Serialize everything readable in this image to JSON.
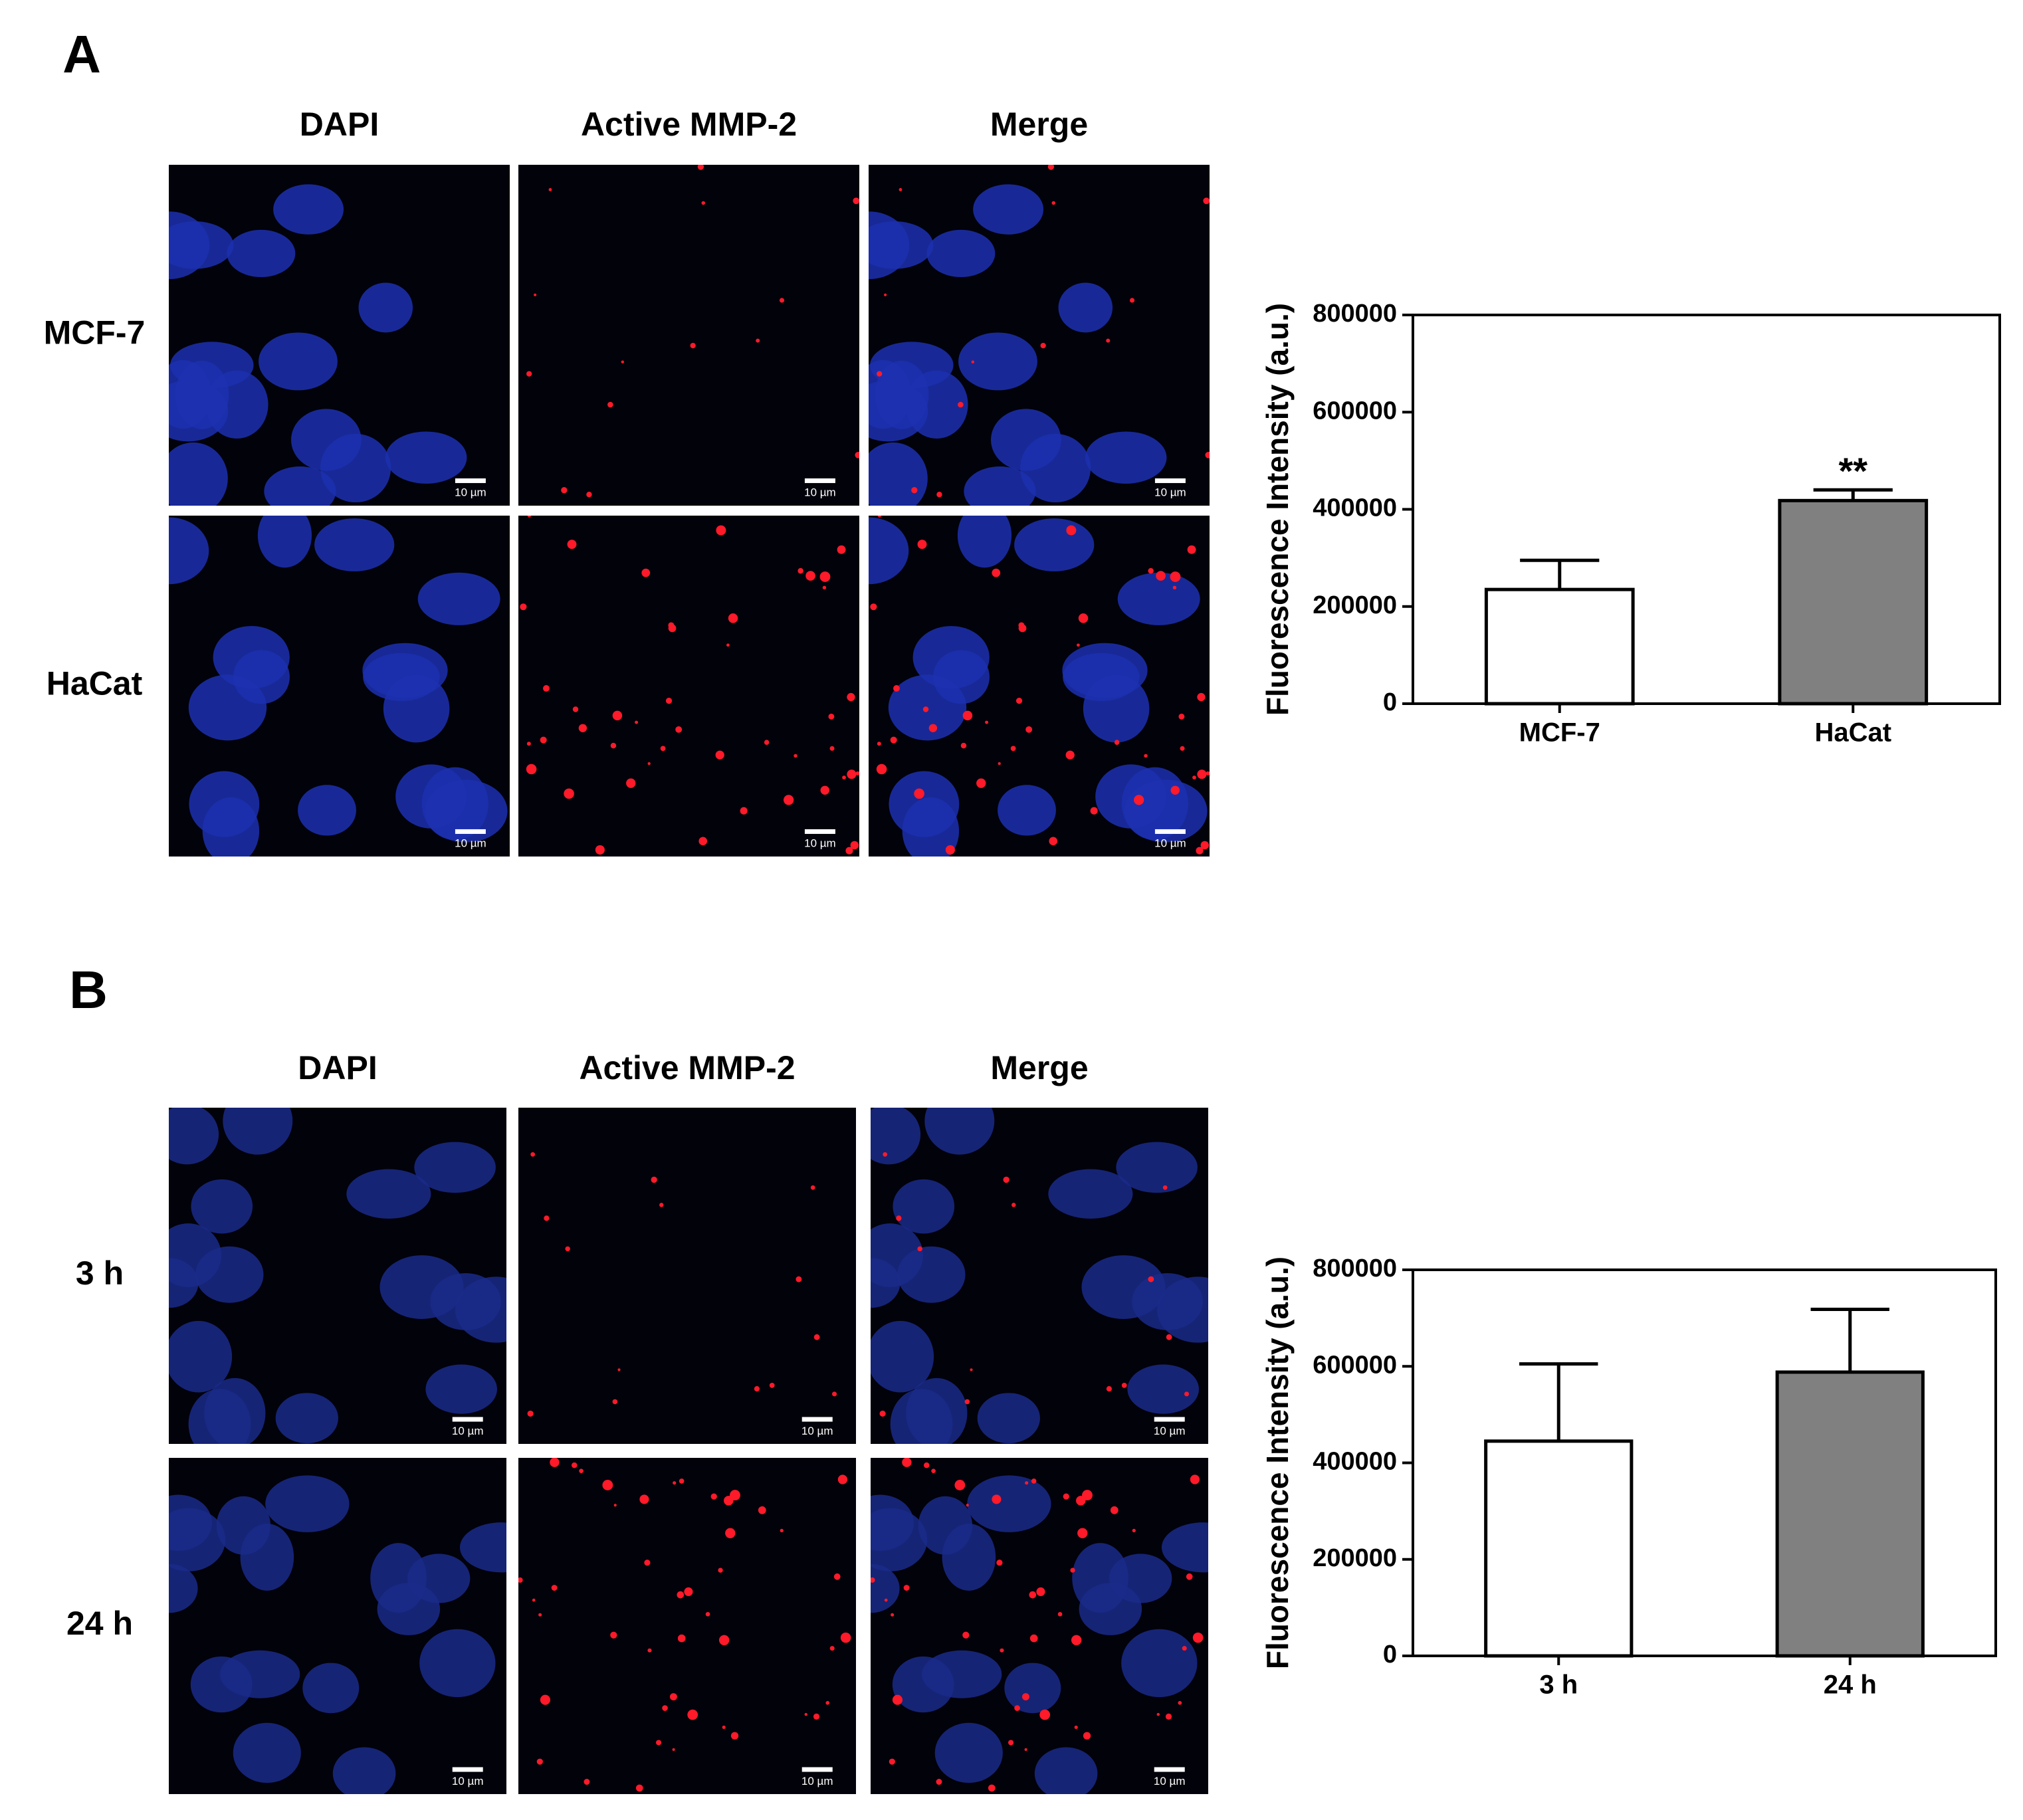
{
  "panels": [
    {
      "label": "A",
      "columns": [
        "DAPI",
        "Active MMP-2",
        "Merge"
      ],
      "rows": [
        "MCF-7",
        "HaCat"
      ],
      "scale_bar": "10 µm"
    },
    {
      "label": "B",
      "columns": [
        "DAPI",
        "Active MMP-2",
        "Merge"
      ],
      "rows": [
        "3 h",
        "24 h"
      ],
      "scale_bar": "10 µm"
    }
  ],
  "chart_data": [
    {
      "type": "bar",
      "ylabel": "Fluorescence Intensity (a.u.)",
      "categories": [
        "MCF-7",
        "HaCat"
      ],
      "values": [
        235000,
        418000
      ],
      "errors": [
        60000,
        22000
      ],
      "colors": [
        "#ffffff",
        "#808080"
      ],
      "annotation": {
        "text": "**",
        "category": "HaCat"
      },
      "ylim": [
        0,
        800000
      ],
      "yticks": [
        0,
        200000,
        400000,
        600000,
        800000
      ]
    },
    {
      "type": "bar",
      "ylabel": "Fluorescence Intensity (a.u.)",
      "categories": [
        "3 h",
        "24 h"
      ],
      "values": [
        445000,
        588000
      ],
      "errors": [
        160000,
        130000
      ],
      "colors": [
        "#ffffff",
        "#808080"
      ],
      "ylim": [
        0,
        800000
      ],
      "yticks": [
        0,
        200000,
        400000,
        600000,
        800000
      ]
    }
  ]
}
